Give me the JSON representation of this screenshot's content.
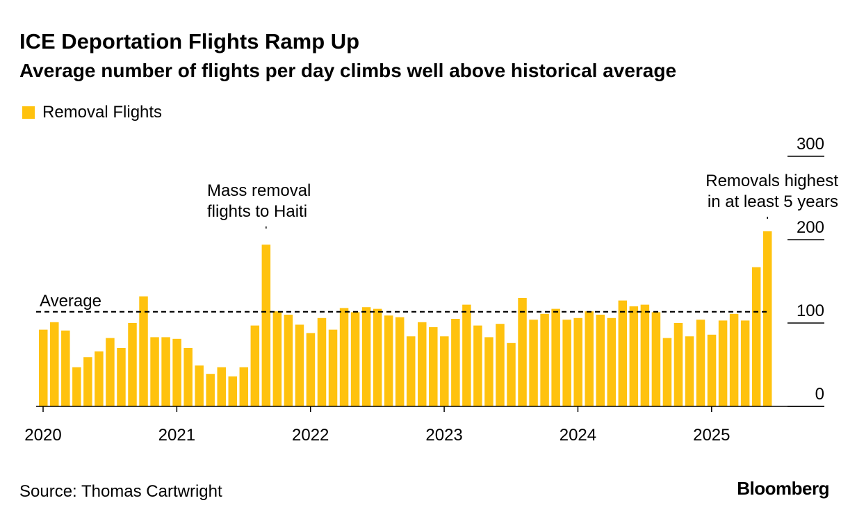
{
  "header": {
    "title": "ICE Deportation Flights Ramp Up",
    "subtitle": "Average number of flights per day climbs well above historical average"
  },
  "footer": {
    "source": "Source: Thomas Cartwright",
    "logo": "Bloomberg"
  },
  "colors": {
    "bar": "#FFC20E",
    "average_line": "#000000",
    "text": "#000000"
  },
  "chart_data": {
    "type": "bar",
    "legend": {
      "placement": "top-left",
      "entries": [
        "Removal Flights"
      ]
    },
    "series": [
      {
        "name": "Removal Flights",
        "values": [
          92,
          101,
          91,
          47,
          59,
          66,
          82,
          70,
          100,
          132,
          83,
          83,
          81,
          70,
          49,
          39,
          47,
          36,
          47,
          97,
          194,
          114,
          110,
          98,
          88,
          106,
          92,
          118,
          113,
          119,
          117,
          109,
          107,
          84,
          101,
          95,
          84,
          105,
          122,
          97,
          83,
          99,
          76,
          130,
          104,
          111,
          117,
          104,
          106,
          114,
          110,
          106,
          127,
          120,
          122,
          113,
          82,
          100,
          84,
          104,
          86,
          103,
          111,
          103,
          167,
          210
        ]
      }
    ],
    "x_start": "2020-01",
    "x_end": "2025-06",
    "x_interval": "month",
    "xticks": [
      "2020",
      "2021",
      "2022",
      "2023",
      "2024",
      "2025"
    ],
    "yticks": [
      0,
      100,
      200,
      300
    ],
    "ylim": [
      0,
      300
    ],
    "reference_lines": [
      {
        "label": "Average",
        "value": 113.5,
        "style": "dashed"
      }
    ],
    "annotations": [
      {
        "lines": [
          "Mass removal",
          "flights to Haiti"
        ],
        "month": "2021-09"
      },
      {
        "lines": [
          "Removals highest",
          "in at least 5 years"
        ],
        "month": "2025-06"
      }
    ],
    "grid": false
  }
}
